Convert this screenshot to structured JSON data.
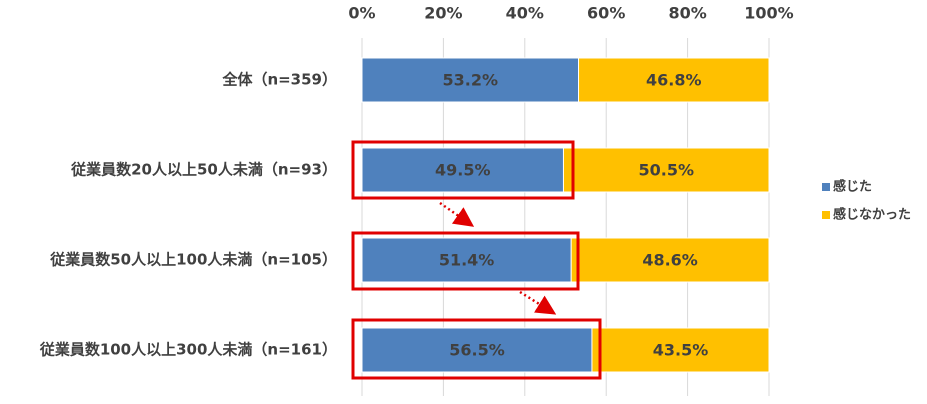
{
  "chart_data": {
    "type": "stacked-bar-horizontal",
    "categories": [
      "全体（n=359）",
      "従業員数20人以上50人未満（n=93）",
      "従業員数50人以上100人未満（n=105）",
      "従業員数100人以上300人未満（n=161）"
    ],
    "series": [
      {
        "name": "感じた",
        "color": "#4f81bd",
        "values": [
          53.2,
          49.5,
          51.4,
          56.5
        ],
        "value_labels": [
          "53.2%",
          "49.5%",
          "51.4%",
          "56.5%"
        ]
      },
      {
        "name": "感じなかった",
        "color": "#ffc000",
        "values": [
          46.8,
          50.5,
          48.6,
          43.5
        ],
        "value_labels": [
          "46.8%",
          "50.5%",
          "48.6%",
          "43.5%"
        ]
      }
    ],
    "xlim": [
      0,
      100
    ],
    "xticks": [
      {
        "value": 0,
        "label": "0%"
      },
      {
        "value": 20,
        "label": "20%"
      },
      {
        "value": 40,
        "label": "40%"
      },
      {
        "value": 60,
        "label": "60%"
      },
      {
        "value": 80,
        "label": "80%"
      },
      {
        "value": 100,
        "label": "100%"
      }
    ],
    "grid": true,
    "legend": "right"
  }
}
